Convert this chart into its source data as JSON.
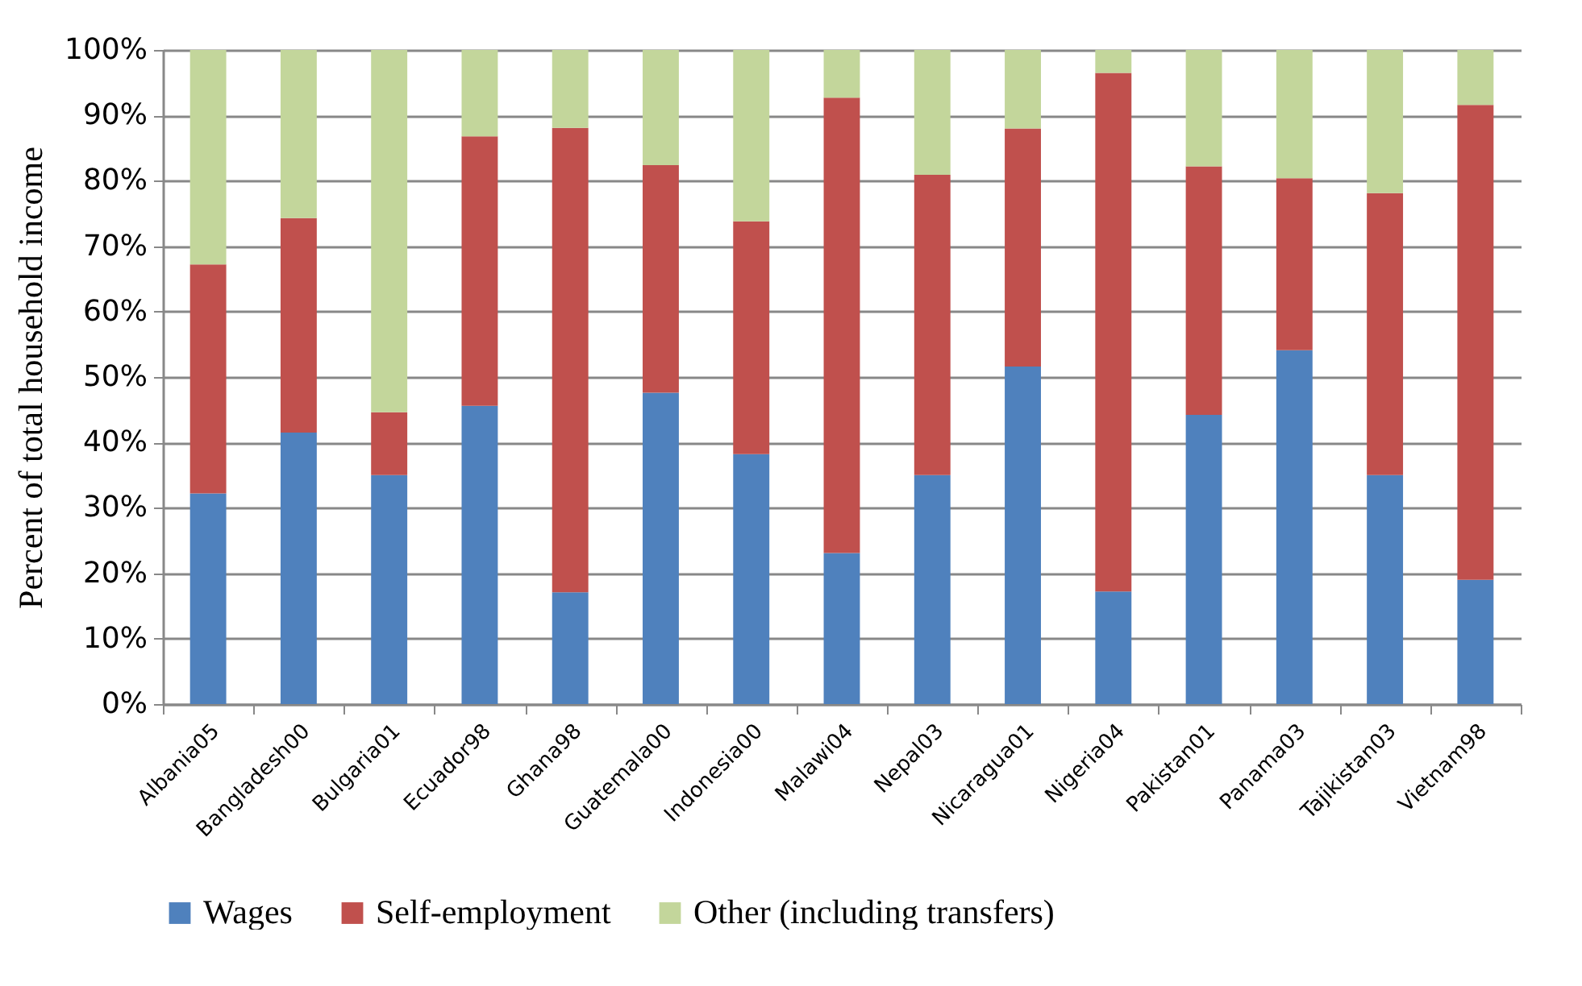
{
  "chart_data": {
    "type": "bar",
    "stacked": true,
    "ylabel": "Percent of total household income",
    "categories": [
      "Albania05",
      "Bangladesh00",
      "Bulgaria01",
      "Ecuador98",
      "Ghana98",
      "Guatemala00",
      "Indonesia00",
      "Malawi04",
      "Nepal03",
      "Nicaragua01",
      "Nigeria04",
      "Pakistan01",
      "Panama03",
      "Tajikistan03",
      "Vietnam98"
    ],
    "series": [
      {
        "name": "Wages",
        "color": "#4f81bd",
        "values": [
          32.2,
          41.5,
          35.0,
          45.6,
          17.1,
          47.6,
          38.2,
          23.1,
          35.0,
          51.6,
          17.2,
          44.2,
          54.1,
          35.0,
          19.0
        ]
      },
      {
        "name": "Self-employment",
        "color": "#c0504d",
        "values": [
          35.0,
          32.8,
          9.6,
          41.2,
          71.0,
          34.8,
          35.6,
          69.6,
          45.9,
          36.4,
          79.3,
          38.0,
          26.3,
          43.1,
          72.6
        ]
      },
      {
        "name": "Other (including transfers)",
        "color": "#c3d69b",
        "values": [
          32.8,
          25.7,
          55.4,
          13.2,
          11.9,
          17.6,
          26.2,
          7.3,
          19.1,
          12.0,
          3.5,
          17.8,
          19.6,
          21.9,
          8.4
        ]
      }
    ],
    "ylim": [
      0,
      100
    ],
    "yticks": [
      {
        "value": 0,
        "label": "0%"
      },
      {
        "value": 10,
        "label": "10%"
      },
      {
        "value": 20,
        "label": "20%"
      },
      {
        "value": 30,
        "label": "30%"
      },
      {
        "value": 40,
        "label": "40%"
      },
      {
        "value": 50,
        "label": "50%"
      },
      {
        "value": 60,
        "label": "60%"
      },
      {
        "value": 70,
        "label": "70%"
      },
      {
        "value": 80,
        "label": "80%"
      },
      {
        "value": 90,
        "label": "90%"
      },
      {
        "value": 100,
        "label": "100%"
      }
    ],
    "grid": "y",
    "legend": "bottom"
  }
}
